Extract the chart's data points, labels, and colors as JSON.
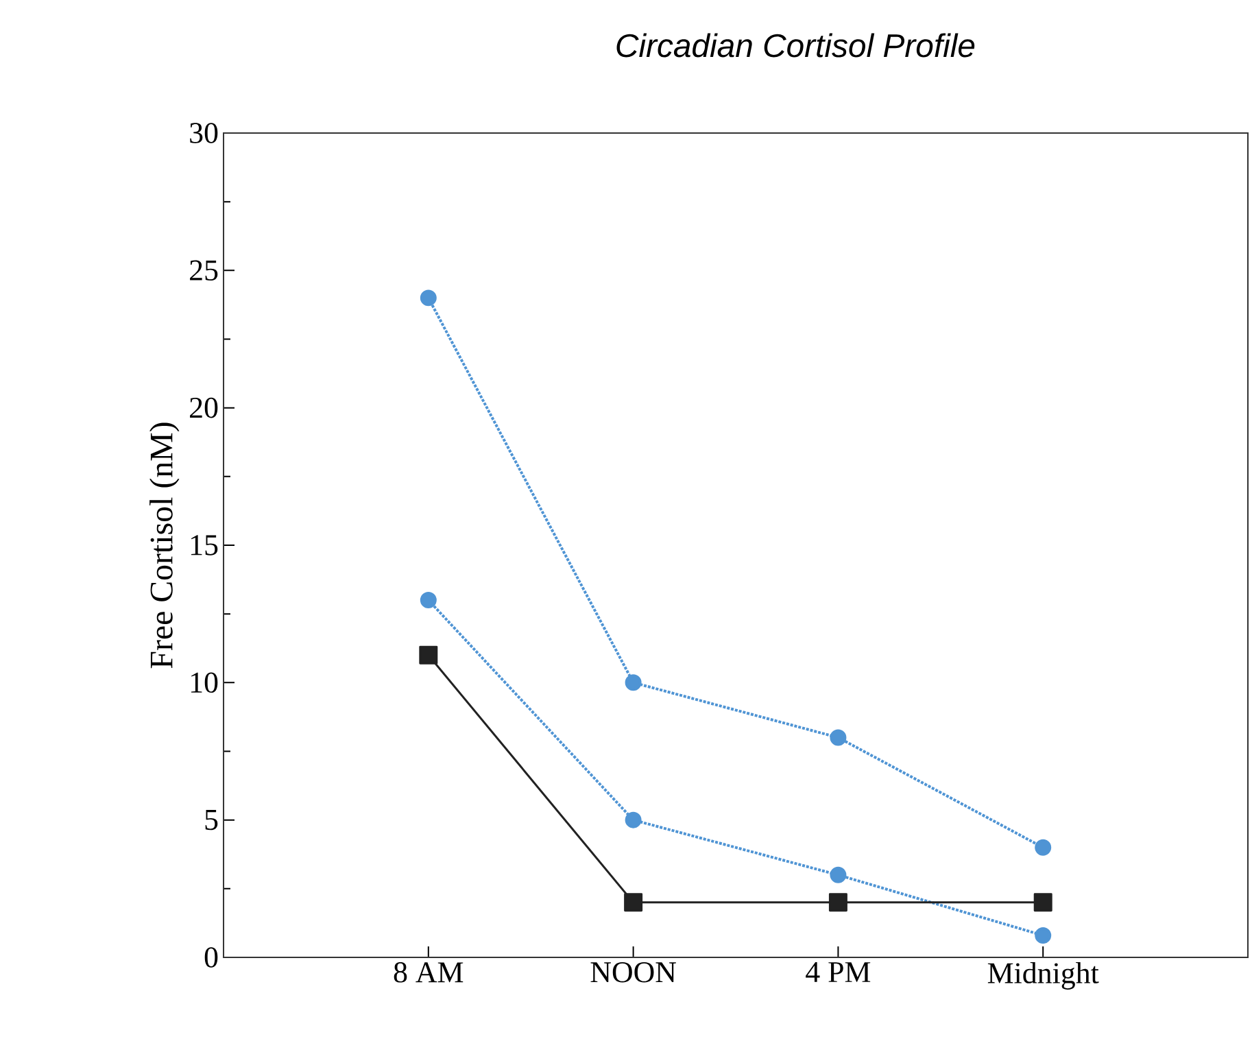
{
  "chart_data": {
    "type": "line",
    "title": "Circadian Cortisol Profile",
    "ylabel": "Free Cortisol (nM)",
    "categories": [
      "8 AM",
      "NOON",
      "4 PM",
      "Midnight"
    ],
    "series": [
      {
        "color": "#4f94d4",
        "values": [
          24,
          10,
          8,
          4
        ],
        "marker": "circle",
        "line_style": "dotted"
      },
      {
        "color": "#4f94d4",
        "values": [
          13,
          5,
          3,
          0.8
        ],
        "marker": "circle",
        "line_style": "dotted"
      },
      {
        "color": "#222222",
        "values": [
          11,
          2,
          2,
          2
        ],
        "marker": "square",
        "line_style": "solid"
      }
    ],
    "ylim": [
      0,
      30
    ],
    "yticks": [
      0,
      5,
      10,
      15,
      20,
      25,
      30
    ],
    "grid": false
  }
}
